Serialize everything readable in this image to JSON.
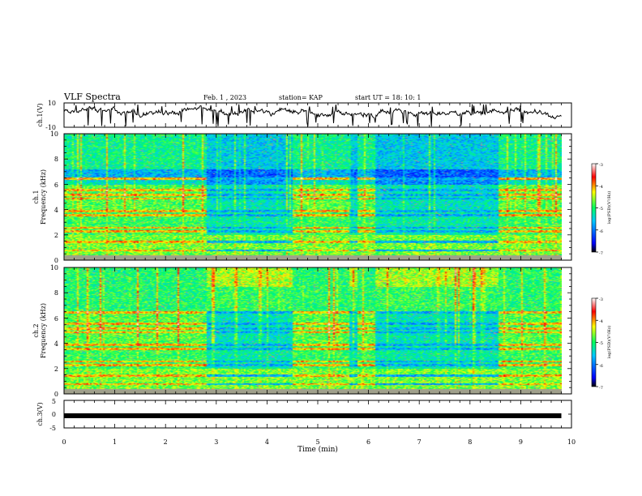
{
  "header": {
    "title": "VLF Spectra",
    "date": "Feb. 1 , 2023",
    "station": "station= KAP",
    "start": "start UT = 18: 10: 1"
  },
  "colors": {
    "wave": "#000000",
    "colormap": [
      "#000000",
      "#0000ff",
      "#00c8ff",
      "#00ff60",
      "#ffff00",
      "#ff0000",
      "#ffffff"
    ]
  },
  "chart_data": [
    {
      "id": "ch1-waveform",
      "type": "line",
      "ylabel": "ch.1(V)",
      "ylim": [
        -10,
        10
      ],
      "yticks": [
        "10",
        "-10"
      ],
      "grid": false
    },
    {
      "id": "ch1-spectrogram",
      "type": "heatmap",
      "ylabel": "ch.1\nFrequency (kHz)",
      "ylabel_lines": [
        "ch.1",
        "Frequency (kHz)"
      ],
      "ylim": [
        0,
        10
      ],
      "yticks": [
        "0",
        "2",
        "4",
        "6",
        "8",
        "10"
      ],
      "colorbar": {
        "label": "log(PSD)(V²/Hz)",
        "range": [
          -7,
          -3
        ],
        "ticks": [
          "-3",
          "-4",
          "-5",
          "-6",
          "-7"
        ]
      }
    },
    {
      "id": "ch2-spectrogram",
      "type": "heatmap",
      "ylabel_lines": [
        "ch.2",
        "Frequency (kHz)"
      ],
      "ylim": [
        0,
        10
      ],
      "yticks": [
        "0",
        "2",
        "4",
        "6",
        "8",
        "10"
      ],
      "colorbar": {
        "label": "log(PSD)(V²/Hz)",
        "range": [
          -7,
          -3
        ],
        "ticks": [
          "-3",
          "-4",
          "-5",
          "-6",
          "-7"
        ]
      }
    },
    {
      "id": "ch3-waveform",
      "type": "line",
      "ylabel": "ch.3(V)",
      "ylim": [
        -5,
        5
      ],
      "yticks": [
        "5",
        "0",
        "-5"
      ],
      "level": -0.6
    }
  ],
  "xaxis": {
    "label": "Time (min)",
    "range": [
      0,
      10
    ],
    "data_end": 9.8,
    "ticks": [
      "0",
      "1",
      "2",
      "3",
      "4",
      "5",
      "6",
      "7",
      "8",
      "9",
      "10"
    ]
  },
  "segments": [
    {
      "from": 0.0,
      "to": 2.8,
      "state": "quiet"
    },
    {
      "from": 2.8,
      "to": 4.5,
      "state": "active"
    },
    {
      "from": 4.5,
      "to": 5.6,
      "state": "quiet"
    },
    {
      "from": 5.6,
      "to": 5.75,
      "state": "active"
    },
    {
      "from": 5.75,
      "to": 6.1,
      "state": "quiet"
    },
    {
      "from": 6.1,
      "to": 8.55,
      "state": "active"
    },
    {
      "from": 8.55,
      "to": 9.8,
      "state": "quiet"
    }
  ]
}
